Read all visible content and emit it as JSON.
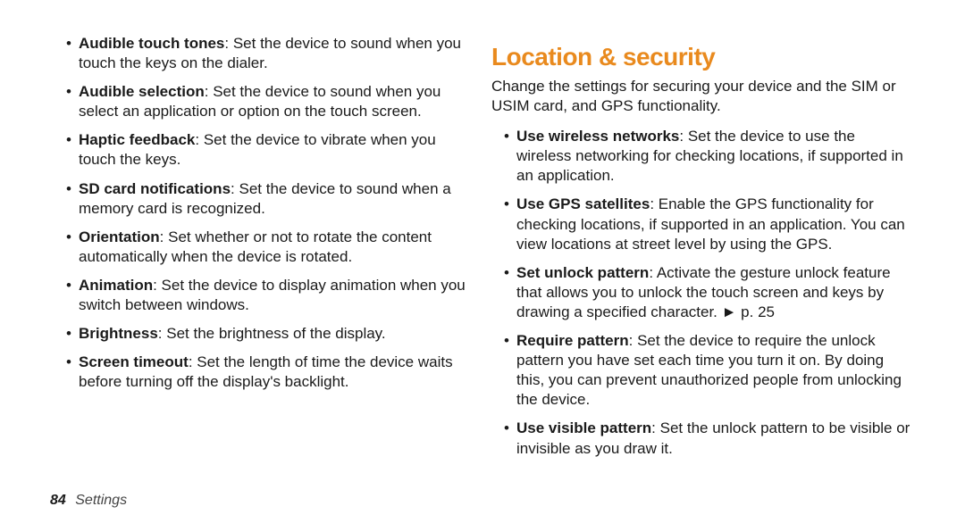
{
  "page": {
    "number": "84",
    "section_name": "Settings"
  },
  "left_col": {
    "items": [
      {
        "title": "Audible touch tones",
        "desc": ": Set the device to sound when you touch the keys on the dialer."
      },
      {
        "title": "Audible selection",
        "desc": ": Set the device to sound when you select an application or option on the touch screen."
      },
      {
        "title": "Haptic feedback",
        "desc": ": Set the device to vibrate when you touch the keys."
      },
      {
        "title": "SD card notifications",
        "desc": ": Set the device to sound when a memory card is recognized."
      },
      {
        "title": "Orientation",
        "desc": ": Set whether or not to rotate the content automatically when the device is rotated."
      },
      {
        "title": "Animation",
        "desc": ": Set the device to display animation when you switch between windows."
      },
      {
        "title": "Brightness",
        "desc": ": Set the brightness of the display."
      },
      {
        "title": "Screen timeout",
        "desc": ": Set the length of time the device waits before turning off the display's backlight."
      }
    ]
  },
  "right_col": {
    "heading": "Location & security",
    "intro": "Change the settings for securing your device and the SIM or USIM card, and GPS functionality.",
    "items": [
      {
        "title": "Use wireless networks",
        "desc": ": Set the device to use the wireless networking for checking locations, if supported in an application."
      },
      {
        "title": "Use GPS satellites",
        "desc": ": Enable the GPS functionality for checking locations, if supported in an application. You can view locations at street level by using the GPS."
      },
      {
        "title": "Set unlock pattern",
        "desc": ": Activate the gesture unlock feature that allows you to unlock the touch screen and keys by drawing a specified character. ► p. 25"
      },
      {
        "title": "Require pattern",
        "desc": ": Set the device to require the unlock pattern you have set each time you turn it on. By doing this, you can prevent unauthorized people from unlocking the device."
      },
      {
        "title": "Use visible pattern",
        "desc": ": Set the unlock pattern to be visible or invisible as you draw it."
      }
    ]
  }
}
